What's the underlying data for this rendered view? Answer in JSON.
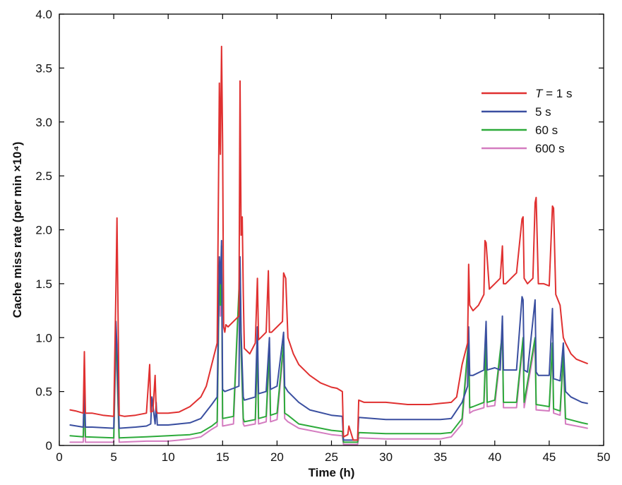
{
  "chart_data": {
    "type": "line",
    "title": "",
    "xlabel": "Time (h)",
    "ylabel": "Cache miss rate (per min ×10⁴)",
    "xlim": [
      0,
      50
    ],
    "ylim": [
      0,
      4.0
    ],
    "x_ticks": [
      0,
      5,
      10,
      15,
      20,
      25,
      30,
      35,
      40,
      45,
      50
    ],
    "y_ticks": [
      0,
      0.5,
      1.0,
      1.5,
      2.0,
      2.5,
      3.0,
      3.5,
      4.0
    ],
    "x_tick_labels": [
      "0",
      "5",
      "10",
      "15",
      "20",
      "25",
      "30",
      "35",
      "40",
      "45",
      "50"
    ],
    "y_tick_labels": [
      "0",
      "0.5",
      "1.0",
      "1.5",
      "2.0",
      "2.5",
      "3.0",
      "3.5",
      "4.0"
    ],
    "grid": false,
    "legend_position": "top-right",
    "series": [
      {
        "name": "T = 1 s",
        "name_italic": "T",
        "name_rest": " = 1 s",
        "color": "#e03030",
        "x": [
          1.0,
          1.5,
          2.2,
          2.3,
          2.4,
          3.0,
          4.0,
          5.0,
          5.2,
          5.3,
          5.5,
          6.0,
          7.0,
          8.0,
          8.3,
          8.4,
          8.6,
          8.8,
          8.9,
          9.0,
          10.0,
          11.0,
          12.0,
          13.0,
          13.5,
          14.0,
          14.5,
          14.7,
          14.8,
          14.9,
          15.0,
          15.1,
          15.2,
          15.3,
          15.5,
          16.0,
          16.5,
          16.6,
          16.7,
          16.8,
          16.9,
          17.0,
          17.5,
          18.0,
          18.2,
          18.3,
          18.5,
          19.0,
          19.2,
          19.3,
          19.5,
          20.0,
          20.5,
          20.6,
          20.8,
          21.0,
          21.5,
          22.0,
          23.0,
          24.0,
          25.0,
          25.5,
          26.0,
          26.1,
          26.5,
          26.6,
          27.0,
          27.4,
          27.5,
          28.0,
          30.0,
          32.0,
          34.0,
          35.0,
          36.0,
          36.5,
          37.0,
          37.5,
          37.6,
          37.7,
          38.0,
          38.5,
          39.0,
          39.1,
          39.2,
          39.5,
          40.0,
          40.5,
          40.7,
          40.8,
          41.0,
          41.5,
          42.0,
          42.5,
          42.6,
          42.7,
          43.0,
          43.5,
          43.7,
          43.8,
          44.0,
          44.5,
          45.0,
          45.3,
          45.4,
          45.6,
          46.0,
          46.3,
          46.5,
          47.0,
          47.5,
          48.0,
          48.5
        ],
        "y": [
          0.33,
          0.32,
          0.3,
          0.87,
          0.3,
          0.3,
          0.28,
          0.27,
          1.45,
          2.11,
          0.28,
          0.27,
          0.28,
          0.3,
          0.75,
          0.31,
          0.32,
          0.65,
          0.33,
          0.3,
          0.3,
          0.31,
          0.36,
          0.45,
          0.55,
          0.75,
          0.95,
          3.36,
          2.7,
          3.7,
          2.8,
          1.1,
          1.05,
          1.12,
          1.1,
          1.15,
          1.2,
          3.38,
          1.95,
          2.12,
          1.4,
          0.9,
          0.85,
          0.95,
          1.55,
          0.98,
          1.0,
          1.05,
          1.62,
          1.05,
          1.05,
          1.1,
          1.15,
          1.6,
          1.55,
          1.0,
          0.85,
          0.75,
          0.65,
          0.58,
          0.54,
          0.53,
          0.5,
          0.08,
          0.1,
          0.18,
          0.05,
          0.05,
          0.42,
          0.4,
          0.4,
          0.38,
          0.38,
          0.39,
          0.4,
          0.45,
          0.75,
          0.95,
          1.68,
          1.3,
          1.25,
          1.3,
          1.4,
          1.9,
          1.88,
          1.45,
          1.5,
          1.55,
          1.85,
          1.5,
          1.5,
          1.55,
          1.6,
          2.1,
          2.12,
          1.55,
          1.5,
          1.55,
          2.25,
          2.3,
          1.5,
          1.5,
          1.48,
          2.22,
          2.2,
          1.4,
          1.3,
          1.0,
          0.95,
          0.85,
          0.8,
          0.78,
          0.76
        ]
      },
      {
        "name": "5 s",
        "color": "#3a4fa0",
        "x": [
          1.0,
          2.2,
          2.3,
          2.4,
          3.0,
          5.0,
          5.2,
          5.3,
          5.5,
          7.0,
          8.0,
          8.4,
          8.5,
          8.8,
          8.9,
          9.0,
          10.0,
          12.0,
          13.0,
          14.0,
          14.5,
          14.7,
          14.8,
          14.9,
          15.0,
          15.2,
          16.0,
          16.5,
          16.6,
          16.7,
          16.9,
          17.0,
          18.0,
          18.2,
          18.3,
          19.0,
          19.3,
          19.4,
          20.0,
          20.6,
          20.7,
          21.0,
          22.0,
          23.0,
          25.0,
          26.0,
          26.1,
          27.0,
          27.4,
          27.5,
          30.0,
          35.0,
          36.0,
          37.0,
          37.5,
          37.6,
          37.7,
          38.0,
          39.0,
          39.2,
          39.3,
          40.0,
          40.5,
          40.7,
          40.8,
          41.0,
          42.0,
          42.5,
          42.6,
          42.7,
          43.0,
          43.7,
          43.8,
          44.0,
          45.0,
          45.3,
          45.4,
          46.0,
          46.3,
          46.5,
          47.0,
          48.0,
          48.5
        ],
        "y": [
          0.19,
          0.17,
          0.57,
          0.17,
          0.17,
          0.16,
          1.15,
          0.9,
          0.16,
          0.17,
          0.18,
          0.2,
          0.45,
          0.2,
          0.4,
          0.19,
          0.19,
          0.21,
          0.25,
          0.38,
          0.45,
          1.75,
          1.5,
          1.9,
          0.52,
          0.5,
          0.53,
          0.55,
          1.75,
          1.05,
          0.45,
          0.42,
          0.45,
          1.1,
          0.48,
          0.5,
          1.0,
          0.52,
          0.55,
          1.05,
          0.55,
          0.5,
          0.4,
          0.33,
          0.28,
          0.27,
          0.05,
          0.05,
          0.05,
          0.26,
          0.24,
          0.24,
          0.25,
          0.4,
          0.55,
          1.1,
          0.65,
          0.65,
          0.7,
          1.15,
          0.7,
          0.72,
          0.7,
          1.2,
          0.7,
          0.7,
          0.7,
          1.38,
          1.35,
          0.7,
          0.68,
          1.35,
          0.68,
          0.65,
          0.65,
          1.27,
          0.62,
          0.6,
          0.95,
          0.5,
          0.45,
          0.4,
          0.39
        ]
      },
      {
        "name": "60 s",
        "color": "#2caa3a",
        "x": [
          1.0,
          2.2,
          2.3,
          2.4,
          5.0,
          5.2,
          5.3,
          5.5,
          8.0,
          10.0,
          12.0,
          13.0,
          14.0,
          14.5,
          14.7,
          14.8,
          14.9,
          15.0,
          16.0,
          16.6,
          16.7,
          16.9,
          17.0,
          18.0,
          18.2,
          18.3,
          19.0,
          19.3,
          19.4,
          20.0,
          20.6,
          20.7,
          21.0,
          22.0,
          25.0,
          26.0,
          26.1,
          27.0,
          27.4,
          27.5,
          30.0,
          35.0,
          36.0,
          37.0,
          37.6,
          37.7,
          38.0,
          39.0,
          39.2,
          39.3,
          40.0,
          40.7,
          40.8,
          42.0,
          42.6,
          42.7,
          43.7,
          43.8,
          45.0,
          45.3,
          45.4,
          46.0,
          46.3,
          46.5,
          48.0,
          48.5
        ],
        "y": [
          0.09,
          0.08,
          0.5,
          0.08,
          0.07,
          1.05,
          0.75,
          0.07,
          0.08,
          0.09,
          0.1,
          0.12,
          0.18,
          0.22,
          1.65,
          1.3,
          1.85,
          0.25,
          0.27,
          1.68,
          0.9,
          0.25,
          0.22,
          0.24,
          0.95,
          0.25,
          0.27,
          0.9,
          0.28,
          0.3,
          0.95,
          0.3,
          0.28,
          0.2,
          0.14,
          0.13,
          0.03,
          0.03,
          0.03,
          0.12,
          0.11,
          0.11,
          0.12,
          0.25,
          1.0,
          0.35,
          0.36,
          0.4,
          1.0,
          0.4,
          0.42,
          1.05,
          0.4,
          0.4,
          1.0,
          0.4,
          1.0,
          0.38,
          0.36,
          0.95,
          0.34,
          0.32,
          0.85,
          0.25,
          0.21,
          0.2
        ]
      },
      {
        "name": "600 s",
        "color": "#d47cc0",
        "x": [
          1.0,
          2.2,
          2.3,
          2.4,
          5.0,
          5.2,
          5.3,
          5.5,
          8.0,
          10.0,
          12.0,
          13.0,
          14.0,
          14.5,
          14.7,
          14.8,
          14.9,
          15.0,
          16.0,
          16.6,
          16.7,
          16.9,
          17.0,
          18.0,
          18.2,
          18.3,
          19.0,
          19.3,
          19.4,
          20.0,
          20.6,
          20.7,
          21.0,
          22.0,
          25.0,
          26.0,
          26.1,
          27.0,
          27.4,
          27.5,
          30.0,
          35.0,
          36.0,
          37.0,
          37.6,
          37.7,
          38.0,
          39.0,
          39.2,
          39.3,
          40.0,
          40.7,
          40.8,
          42.0,
          42.6,
          42.7,
          43.7,
          43.8,
          45.0,
          45.3,
          45.4,
          46.0,
          46.3,
          46.5,
          48.0,
          48.5
        ],
        "y": [
          0.03,
          0.03,
          0.45,
          0.03,
          0.03,
          0.95,
          0.65,
          0.03,
          0.04,
          0.04,
          0.06,
          0.08,
          0.15,
          0.18,
          1.6,
          1.2,
          1.75,
          0.18,
          0.2,
          1.62,
          0.85,
          0.2,
          0.18,
          0.2,
          0.9,
          0.2,
          0.22,
          0.85,
          0.22,
          0.24,
          0.9,
          0.25,
          0.22,
          0.16,
          0.1,
          0.09,
          0.01,
          0.01,
          0.01,
          0.07,
          0.06,
          0.06,
          0.08,
          0.2,
          0.95,
          0.3,
          0.32,
          0.35,
          0.95,
          0.36,
          0.37,
          1.0,
          0.35,
          0.35,
          0.95,
          0.35,
          0.95,
          0.33,
          0.32,
          0.9,
          0.3,
          0.28,
          0.8,
          0.2,
          0.17,
          0.16
        ]
      }
    ]
  }
}
